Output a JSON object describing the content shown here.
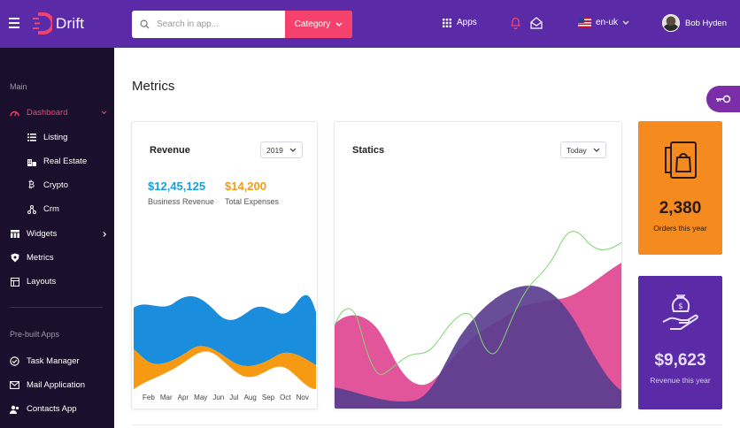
{
  "topbar": {
    "brand": "Drift",
    "search_placeholder": "Search in app...",
    "category_label": "Category",
    "apps_label": "Apps",
    "language": "en-uk",
    "user_name": "Bob Hyden"
  },
  "sidebar": {
    "main_title": "Main",
    "items": [
      {
        "label": "Dashboard",
        "icon": "dashboard-icon",
        "active": true
      },
      {
        "label": "Listing",
        "icon": "list-icon"
      },
      {
        "label": "Real Estate",
        "icon": "building-icon"
      },
      {
        "label": "Crypto",
        "icon": "bitcoin-icon"
      },
      {
        "label": "Crm",
        "icon": "network-icon"
      },
      {
        "label": "Widgets",
        "icon": "widgets-icon"
      },
      {
        "label": "Metrics",
        "icon": "shield-icon"
      },
      {
        "label": "Layouts",
        "icon": "layout-icon"
      }
    ],
    "apps_title": "Pre-built Apps",
    "apps": [
      {
        "label": "Task Manager",
        "icon": "check-circle-icon"
      },
      {
        "label": "Mail Application",
        "icon": "mail-icon"
      },
      {
        "label": "Contacts App",
        "icon": "contacts-icon"
      }
    ]
  },
  "page": {
    "title": "Metrics"
  },
  "revenue_card": {
    "title": "Revenue",
    "year": "2019",
    "business_revenue_value": "$12,45,125",
    "business_revenue_label": "Business Revenue",
    "total_expenses_value": "$14,200",
    "total_expenses_label": "Total Expenses",
    "months": [
      "Feb",
      "Mar",
      "Apr",
      "May",
      "Jun",
      "Jul",
      "Aug",
      "Sep",
      "Oct",
      "Nov"
    ]
  },
  "statics_card": {
    "title": "Statics",
    "period": "Today"
  },
  "orders_card": {
    "value": "2,380",
    "label": "Orders this year",
    "color": "#f58a1f"
  },
  "revenue_year_card": {
    "value": "$9,623",
    "label": "Revenue this year",
    "color": "#5a2aa7"
  },
  "colors": {
    "primary": "#5a2aa7",
    "accent": "#f5426d",
    "sidebar_bg": "#1a0f2c",
    "blue": "#1a8ddd",
    "orange": "#f59a12"
  }
}
